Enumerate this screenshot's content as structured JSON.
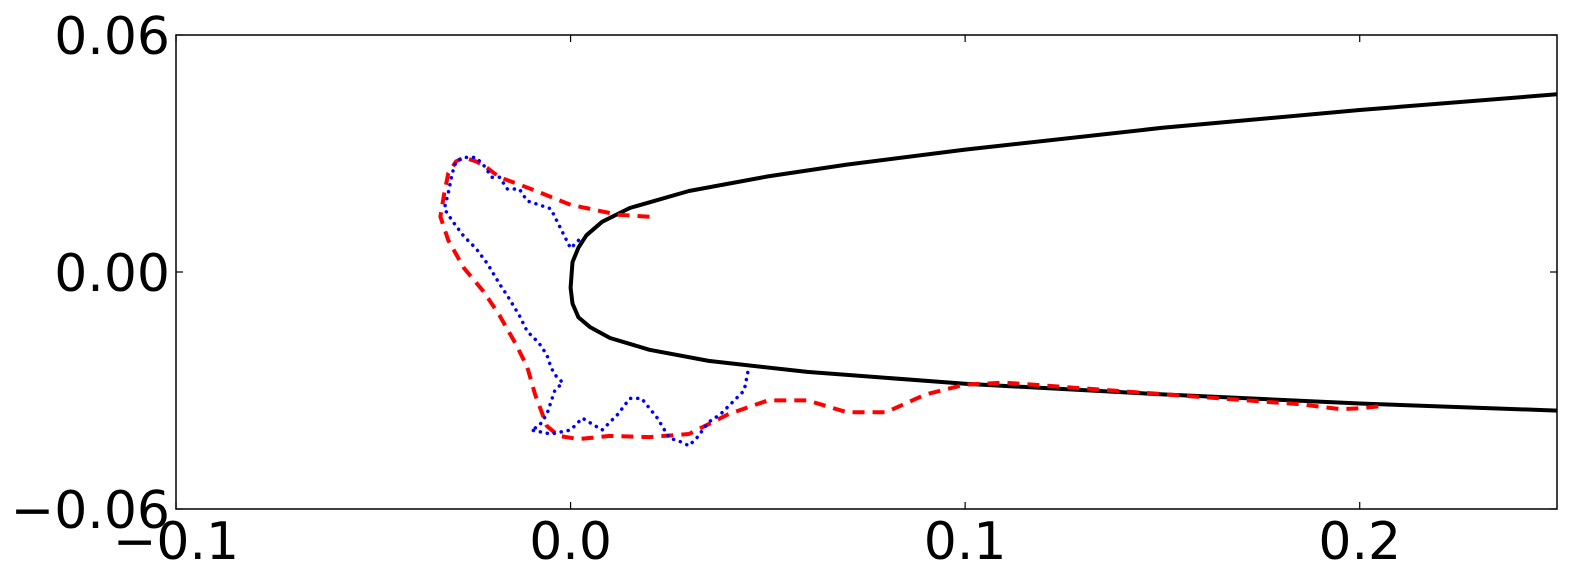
{
  "chart_data": {
    "type": "line",
    "title": "",
    "xlabel": "",
    "ylabel": "",
    "xlim": [
      -0.1,
      0.25
    ],
    "ylim": [
      -0.06,
      0.06
    ],
    "xticks": [
      -0.1,
      0.0,
      0.1,
      0.2
    ],
    "yticks": [
      -0.06,
      0.0,
      0.06
    ],
    "xtick_labels": [
      "−0.1",
      "0.0",
      "0.1",
      "0.2"
    ],
    "ytick_labels": [
      "−0.06",
      "0.00",
      "0.06"
    ],
    "grid": false,
    "legend": "none",
    "series": [
      {
        "style": "solid",
        "color": "#000000",
        "x": [
          0.25,
          0.2,
          0.15,
          0.1,
          0.07,
          0.05,
          0.03,
          0.015,
          0.008,
          0.004,
          0.002,
          0.0005,
          0.0,
          0.0005,
          0.002,
          0.005,
          0.01,
          0.02,
          0.035,
          0.06,
          0.1,
          0.15,
          0.2,
          0.25
        ],
        "y": [
          0.045,
          0.041,
          0.0365,
          0.031,
          0.0272,
          0.0242,
          0.0205,
          0.0162,
          0.0127,
          0.0093,
          0.0062,
          0.0025,
          -0.004,
          -0.008,
          -0.0115,
          -0.014,
          -0.0167,
          -0.0197,
          -0.0225,
          -0.0253,
          -0.0283,
          -0.031,
          -0.0333,
          -0.0351
        ]
      },
      {
        "style": "dashed",
        "color": "#ff0000",
        "x": [
          0.02,
          0.012,
          0.0,
          -0.01,
          -0.018,
          -0.022,
          -0.024,
          -0.027,
          -0.029,
          -0.031,
          -0.032,
          -0.033,
          -0.031,
          -0.027,
          -0.022,
          -0.018,
          -0.014,
          -0.011,
          -0.009,
          -0.006,
          -0.003,
          0.002,
          0.01,
          0.02,
          0.03,
          0.04,
          0.05,
          0.06,
          0.07,
          0.08,
          0.09,
          0.1,
          0.11,
          0.185,
          0.195,
          0.2,
          0.205
        ],
        "y": [
          0.014,
          0.0145,
          0.017,
          0.021,
          0.024,
          0.027,
          0.028,
          0.029,
          0.028,
          0.025,
          0.02,
          0.014,
          0.008,
          0.001,
          -0.005,
          -0.011,
          -0.018,
          -0.024,
          -0.031,
          -0.039,
          -0.0415,
          -0.0423,
          -0.0415,
          -0.0418,
          -0.041,
          -0.036,
          -0.0325,
          -0.0325,
          -0.0355,
          -0.0355,
          -0.031,
          -0.0285,
          -0.028,
          -0.0335,
          -0.0347,
          -0.0345,
          -0.034
        ]
      },
      {
        "style": "dotted",
        "color": "#0000ff",
        "x": [
          0.002,
          0.0,
          -0.003,
          -0.005,
          -0.008,
          -0.011,
          -0.013,
          -0.016,
          -0.018,
          -0.02,
          -0.022,
          -0.024,
          -0.027,
          -0.029,
          -0.03,
          -0.031,
          -0.032,
          -0.03,
          -0.027,
          -0.024,
          -0.021,
          -0.018,
          -0.016,
          -0.013,
          -0.011,
          -0.008,
          -0.006,
          -0.005,
          -0.004,
          -0.003,
          -0.002,
          -0.004,
          -0.006,
          -0.008,
          -0.01,
          -0.005,
          0.0,
          0.003,
          0.008,
          0.012,
          0.015,
          0.018,
          0.022,
          0.025,
          0.028,
          0.03,
          0.032,
          0.035,
          0.038,
          0.041,
          0.044,
          0.045
        ],
        "y": [
          0.008,
          0.006,
          0.012,
          0.016,
          0.017,
          0.018,
          0.021,
          0.021,
          0.024,
          0.024,
          0.027,
          0.029,
          0.029,
          0.028,
          0.025,
          0.02,
          0.016,
          0.013,
          0.009,
          0.006,
          0.002,
          -0.003,
          -0.006,
          -0.011,
          -0.015,
          -0.018,
          -0.021,
          -0.024,
          -0.026,
          -0.027,
          -0.028,
          -0.03,
          -0.036,
          -0.039,
          -0.04,
          -0.041,
          -0.04,
          -0.037,
          -0.04,
          -0.036,
          -0.032,
          -0.032,
          -0.037,
          -0.042,
          -0.043,
          -0.044,
          -0.042,
          -0.038,
          -0.036,
          -0.033,
          -0.03,
          -0.025
        ]
      }
    ]
  }
}
